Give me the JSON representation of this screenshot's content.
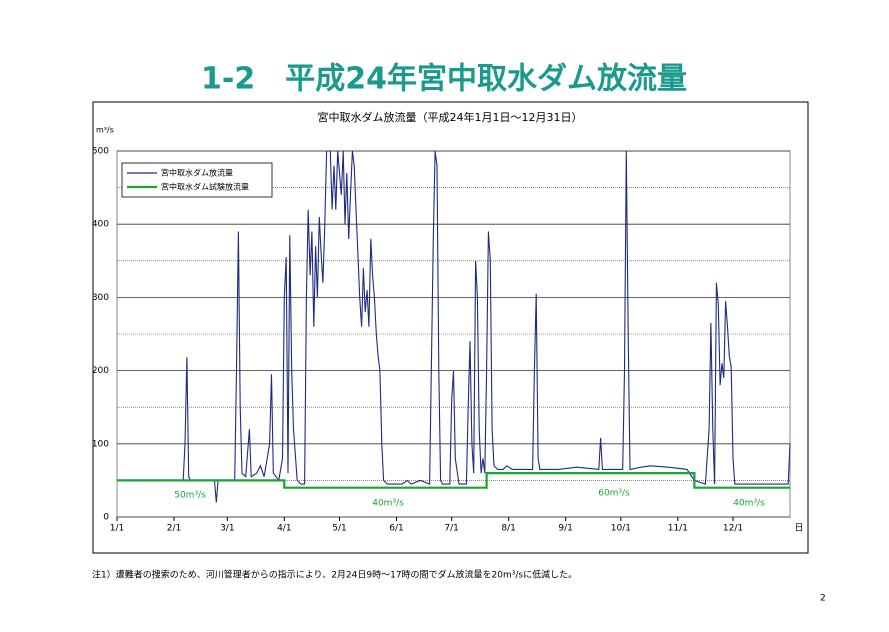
{
  "page_title": "1-2　平成24年宮中取水ダム放流量",
  "chart_data": {
    "type": "line",
    "title": "宮中取水ダム放流量（平成24年1月1日～12月31日）",
    "y_unit": "m³/s",
    "x_label": "日",
    "xlim": [
      0,
      366
    ],
    "xticks": [
      {
        "value": 0,
        "label": "1/1"
      },
      {
        "value": 31,
        "label": "2/1"
      },
      {
        "value": 60,
        "label": "3/1"
      },
      {
        "value": 91,
        "label": "4/1"
      },
      {
        "value": 121,
        "label": "5/1"
      },
      {
        "value": 152,
        "label": "6/1"
      },
      {
        "value": 182,
        "label": "7/1"
      },
      {
        "value": 213,
        "label": "8/1"
      },
      {
        "value": 244,
        "label": "9/1"
      },
      {
        "value": 274,
        "label": "10/1"
      },
      {
        "value": 305,
        "label": "11/1"
      },
      {
        "value": 335,
        "label": "12/1"
      }
    ],
    "ylim": [
      0,
      500
    ],
    "yticks": [
      0,
      100,
      200,
      300,
      400,
      500
    ],
    "minor_yticks": [
      50,
      150,
      250,
      350,
      450
    ],
    "grid": true,
    "legend": "upper left",
    "series": [
      {
        "name": "宮中取水ダム放流量",
        "color": "#1f2a80",
        "x": [
          0,
          36,
          37,
          38,
          39,
          40,
          53,
          54,
          55,
          64,
          65,
          66,
          67,
          68,
          70,
          72,
          73,
          76,
          78,
          80,
          83,
          84,
          85,
          88,
          90,
          91,
          92,
          93,
          94,
          95,
          96,
          98,
          100,
          102,
          103,
          104,
          105,
          106,
          107,
          108,
          109,
          110,
          111,
          112,
          113,
          114,
          116,
          117,
          118,
          119,
          120,
          122,
          123,
          124,
          125,
          126,
          127,
          128,
          129,
          130,
          131,
          132,
          133,
          134,
          135,
          136,
          137,
          138,
          139,
          140,
          141,
          142,
          143,
          144,
          145,
          147,
          155,
          158,
          160,
          165,
          170,
          172,
          173,
          174,
          175,
          176,
          177,
          181,
          182,
          183,
          184,
          186,
          190,
          191,
          192,
          193,
          194,
          195,
          196,
          197,
          198,
          199,
          200,
          201,
          202,
          203,
          204,
          205,
          207,
          210,
          212,
          215,
          220,
          226,
          227,
          228,
          229,
          230,
          240,
          250,
          262,
          263,
          264,
          270,
          275,
          276,
          277,
          278,
          279,
          285,
          290,
          300,
          310,
          314,
          320,
          322,
          323,
          324,
          325,
          326,
          327,
          328,
          329,
          330,
          331,
          332,
          333,
          334,
          335,
          336,
          345,
          355,
          365,
          366
        ],
        "values": [
          50,
          50,
          100,
          218,
          55,
          50,
          50,
          20,
          50,
          50,
          200,
          390,
          150,
          60,
          55,
          120,
          55,
          60,
          70,
          55,
          100,
          195,
          60,
          50,
          80,
          300,
          355,
          60,
          385,
          200,
          120,
          50,
          45,
          45,
          300,
          420,
          330,
          390,
          260,
          370,
          300,
          410,
          360,
          320,
          400,
          500,
          500,
          420,
          480,
          420,
          500,
          440,
          500,
          400,
          470,
          380,
          440,
          500,
          480,
          420,
          360,
          300,
          260,
          340,
          280,
          310,
          260,
          380,
          330,
          300,
          250,
          220,
          200,
          100,
          50,
          45,
          45,
          50,
          45,
          50,
          45,
          380,
          500,
          480,
          200,
          50,
          45,
          45,
          160,
          200,
          80,
          45,
          45,
          150,
          240,
          100,
          60,
          350,
          300,
          120,
          60,
          80,
          60,
          200,
          390,
          350,
          120,
          70,
          65,
          65,
          70,
          65,
          65,
          65,
          200,
          305,
          80,
          65,
          65,
          68,
          65,
          108,
          65,
          65,
          65,
          200,
          500,
          250,
          65,
          68,
          70,
          68,
          65,
          50,
          45,
          120,
          265,
          120,
          45,
          320,
          290,
          180,
          210,
          190,
          295,
          260,
          220,
          205,
          80,
          45,
          45,
          45,
          45,
          100
        ]
      },
      {
        "name": "宮中取水ダム試験放流量",
        "color": "#1aa532",
        "x": [
          0,
          91,
          91,
          201,
          201,
          314,
          314,
          366
        ],
        "values": [
          50,
          50,
          40,
          40,
          60,
          60,
          40,
          40
        ]
      }
    ],
    "annotations": [
      "50m³/s",
      "40m³/s",
      "60m³/s",
      "40m³/s"
    ],
    "note": "注1）遭難者の捜索のため、河川管理者からの指示により、2月24日9時～17時の間でダム放流量を20m³/sに低減した。"
  },
  "page_number": "2"
}
